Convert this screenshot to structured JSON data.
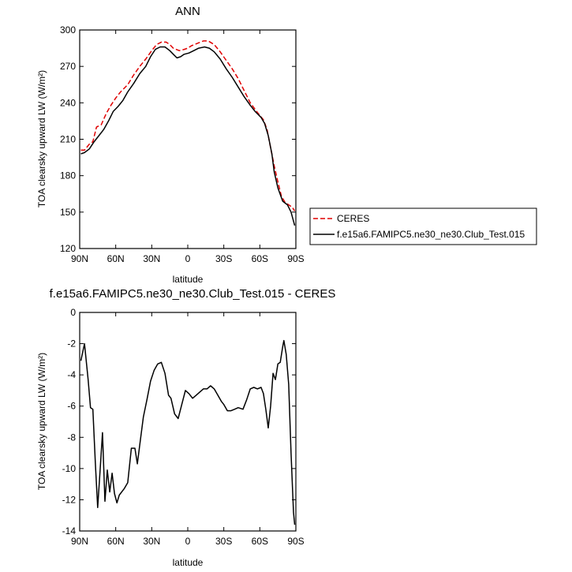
{
  "chart_data": [
    {
      "type": "line",
      "title": "ANN",
      "xlabel": "latitude",
      "ylabel": "TOA clearsky upward LW (W/m²)",
      "xlim": [
        90,
        -90
      ],
      "ylim": [
        120,
        300
      ],
      "xticks": [
        90,
        60,
        30,
        0,
        -30,
        -60,
        -90
      ],
      "xtick_labels": [
        "90N",
        "60N",
        "30N",
        "0",
        "30S",
        "60S",
        "90S"
      ],
      "yticks": [
        120,
        150,
        180,
        210,
        240,
        270,
        300
      ],
      "ytick_labels": [
        "120",
        "150",
        "180",
        "210",
        "240",
        "270",
        "300"
      ],
      "legend_position": "outside right",
      "series": [
        {
          "name": "CERES",
          "color": "#e00000",
          "dash": true,
          "points": [
            [
              89,
              201
            ],
            [
              86,
              201
            ],
            [
              82,
              206
            ],
            [
              79,
              208
            ],
            [
              76,
              220
            ],
            [
              72,
              222
            ],
            [
              68,
              231
            ],
            [
              64,
              238
            ],
            [
              60,
              244
            ],
            [
              56,
              249
            ],
            [
              50,
              255
            ],
            [
              45,
              263
            ],
            [
              40,
              270
            ],
            [
              35,
              276
            ],
            [
              30,
              283
            ],
            [
              26,
              288
            ],
            [
              22,
              290
            ],
            [
              18,
              290
            ],
            [
              15,
              288
            ],
            [
              12,
              285
            ],
            [
              7,
              283
            ],
            [
              3,
              284
            ],
            [
              0,
              285
            ],
            [
              -3,
              287
            ],
            [
              -8,
              289
            ],
            [
              -13,
              291
            ],
            [
              -17,
              291
            ],
            [
              -22,
              288
            ],
            [
              -27,
              282
            ],
            [
              -32,
              275
            ],
            [
              -37,
              268
            ],
            [
              -42,
              260
            ],
            [
              -47,
              250
            ],
            [
              -52,
              240
            ],
            [
              -58,
              232
            ],
            [
              -63,
              226
            ],
            [
              -66,
              218
            ],
            [
              -69,
              203
            ],
            [
              -72,
              188
            ],
            [
              -75,
              175
            ],
            [
              -78,
              163
            ],
            [
              -81,
              158
            ],
            [
              -84,
              156
            ],
            [
              -87,
              154
            ],
            [
              -89,
              151
            ]
          ]
        },
        {
          "name": "f.e15a6.FAMIPC5.ne30_ne30.Club_Test.015",
          "color": "#000000",
          "dash": false,
          "points": [
            [
              89,
              198
            ],
            [
              86,
              199
            ],
            [
              82,
              202
            ],
            [
              78,
              208
            ],
            [
              74,
              213
            ],
            [
              70,
              218
            ],
            [
              66,
              225
            ],
            [
              62,
              233
            ],
            [
              58,
              237
            ],
            [
              54,
              242
            ],
            [
              50,
              249
            ],
            [
              45,
              256
            ],
            [
              40,
              264
            ],
            [
              35,
              270
            ],
            [
              31,
              278
            ],
            [
              27,
              284
            ],
            [
              23,
              286
            ],
            [
              19,
              286
            ],
            [
              15,
              283
            ],
            [
              12,
              280
            ],
            [
              9,
              277
            ],
            [
              6,
              278
            ],
            [
              3,
              280
            ],
            [
              -1,
              281
            ],
            [
              -5,
              283
            ],
            [
              -9,
              285
            ],
            [
              -14,
              286
            ],
            [
              -18,
              285
            ],
            [
              -22,
              282
            ],
            [
              -27,
              276
            ],
            [
              -32,
              268
            ],
            [
              -37,
              261
            ],
            [
              -42,
              253
            ],
            [
              -47,
              245
            ],
            [
              -52,
              238
            ],
            [
              -56,
              233
            ],
            [
              -61,
              228
            ],
            [
              -64,
              223
            ],
            [
              -67,
              213
            ],
            [
              -70,
              198
            ],
            [
              -72,
              183
            ],
            [
              -75,
              170
            ],
            [
              -79,
              159
            ],
            [
              -83,
              156
            ],
            [
              -86,
              150
            ],
            [
              -89,
              139
            ]
          ]
        }
      ]
    },
    {
      "type": "line",
      "title": "f.e15a6.FAMIPC5.ne30_ne30.Club_Test.015 - CERES",
      "xlabel": "latitude",
      "ylabel": "TOA clearsky upward LW (W/m²)",
      "xlim": [
        90,
        -90
      ],
      "ylim": [
        -14,
        0
      ],
      "xticks": [
        90,
        60,
        30,
        0,
        -30,
        -60,
        -90
      ],
      "xtick_labels": [
        "90N",
        "60N",
        "30N",
        "0",
        "30S",
        "60S",
        "90S"
      ],
      "yticks": [
        -14,
        -12,
        -10,
        -8,
        -6,
        -4,
        -2,
        0
      ],
      "ytick_labels": [
        "-14",
        "-12",
        "-10",
        "-8",
        "-6",
        "-4",
        "-2",
        "0"
      ],
      "series": [
        {
          "color": "#000000",
          "points": [
            [
              89,
              -3.1
            ],
            [
              86,
              -2.0
            ],
            [
              83,
              -4.3
            ],
            [
              81,
              -6.1
            ],
            [
              79,
              -6.2
            ],
            [
              77,
              -9.6
            ],
            [
              75,
              -12.5
            ],
            [
              73,
              -10.1
            ],
            [
              71,
              -7.7
            ],
            [
              69,
              -12.1
            ],
            [
              67,
              -10.1
            ],
            [
              65,
              -11.5
            ],
            [
              63,
              -10.3
            ],
            [
              61,
              -11.6
            ],
            [
              59,
              -12.2
            ],
            [
              57,
              -11.7
            ],
            [
              53,
              -11.3
            ],
            [
              50,
              -10.9
            ],
            [
              47,
              -8.7
            ],
            [
              44,
              -8.7
            ],
            [
              42,
              -9.7
            ],
            [
              40,
              -8.5
            ],
            [
              37,
              -6.7
            ],
            [
              34,
              -5.6
            ],
            [
              31,
              -4.4
            ],
            [
              28,
              -3.7
            ],
            [
              25,
              -3.3
            ],
            [
              22,
              -3.2
            ],
            [
              19,
              -3.9
            ],
            [
              16,
              -5.3
            ],
            [
              14,
              -5.5
            ],
            [
              11,
              -6.5
            ],
            [
              8,
              -6.8
            ],
            [
              5,
              -5.9
            ],
            [
              2,
              -5.0
            ],
            [
              -1,
              -5.2
            ],
            [
              -4,
              -5.5
            ],
            [
              -7,
              -5.3
            ],
            [
              -10,
              -5.1
            ],
            [
              -13,
              -4.9
            ],
            [
              -16,
              -4.9
            ],
            [
              -19,
              -4.7
            ],
            [
              -22,
              -4.9
            ],
            [
              -25,
              -5.3
            ],
            [
              -28,
              -5.7
            ],
            [
              -30,
              -5.9
            ],
            [
              -33,
              -6.3
            ],
            [
              -36,
              -6.3
            ],
            [
              -39,
              -6.2
            ],
            [
              -42,
              -6.1
            ],
            [
              -46,
              -6.2
            ],
            [
              -49,
              -5.6
            ],
            [
              -52,
              -4.9
            ],
            [
              -55,
              -4.8
            ],
            [
              -58,
              -4.9
            ],
            [
              -61,
              -4.8
            ],
            [
              -63,
              -5.2
            ],
            [
              -65,
              -6.2
            ],
            [
              -67,
              -7.4
            ],
            [
              -69,
              -6.0
            ],
            [
              -71,
              -3.9
            ],
            [
              -73,
              -4.3
            ],
            [
              -75,
              -3.3
            ],
            [
              -77,
              -3.2
            ],
            [
              -79,
              -2.2
            ],
            [
              -80,
              -1.8
            ],
            [
              -82,
              -2.7
            ],
            [
              -84,
              -4.6
            ],
            [
              -86,
              -9.0
            ],
            [
              -88,
              -12.8
            ],
            [
              -89,
              -13.6
            ]
          ]
        }
      ]
    }
  ]
}
